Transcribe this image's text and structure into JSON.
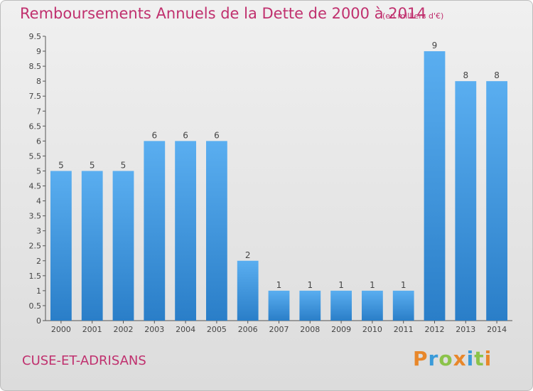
{
  "header": {
    "title": "Remboursements Annuels de la Dette de 2000 à 2014",
    "subtitle": "(en milliers d'€)"
  },
  "footer": {
    "commune": "CUSE-ET-ADRISANS",
    "brand": "Proxiti",
    "brand_colors": [
      "#e8872a",
      "#3a9bd9",
      "#8bc34a",
      "#e8872a",
      "#3a9bd9",
      "#8bc34a",
      "#e8872a"
    ]
  },
  "colors": {
    "bar_light": "#5aaef0",
    "bar_dark": "#2a7ec8",
    "text_accent": "#c0306e"
  },
  "chart_data": {
    "type": "bar",
    "categories": [
      "2000",
      "2001",
      "2002",
      "2003",
      "2004",
      "2005",
      "2006",
      "2007",
      "2008",
      "2009",
      "2010",
      "2011",
      "2012",
      "2013",
      "2014"
    ],
    "values": [
      5,
      5,
      5,
      6,
      6,
      6,
      2,
      1,
      1,
      1,
      1,
      1,
      9,
      8,
      8
    ],
    "data_labels": [
      "5",
      "5",
      "5",
      "6",
      "6",
      "6",
      "2",
      "1",
      "1",
      "1",
      "1",
      "1",
      "9",
      "8",
      "8"
    ],
    "yticks": [
      "0",
      "0.5",
      "1",
      "1.5",
      "2",
      "2.5",
      "3",
      "3.5",
      "4",
      "4.5",
      "5",
      "5.5",
      "6",
      "6.5",
      "7",
      "7.5",
      "8",
      "8.5",
      "9",
      "9.5"
    ],
    "ylim": [
      0,
      9.5
    ],
    "grid": false,
    "legend": "none"
  }
}
